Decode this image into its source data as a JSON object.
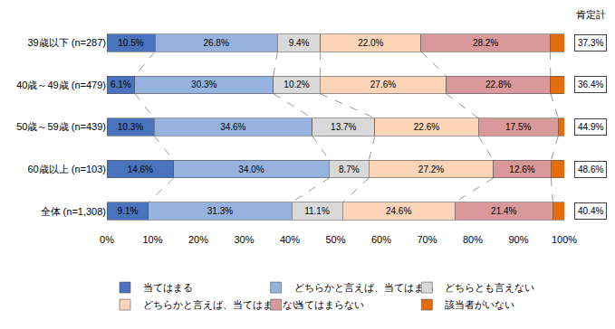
{
  "chart_data": {
    "type": "bar",
    "orientation": "horizontal",
    "stacked": true,
    "grid": false,
    "legend": "bottom",
    "data_labels": true,
    "categories": [
      "39歳以下 (n=287)",
      "40歳～49歳 (n=479)",
      "50歳～59歳 (n=439)",
      "60歳以上 (n=103)",
      "全体 (n=1,308)"
    ],
    "xlim": [
      0,
      100
    ],
    "xticks": [
      {
        "value": 0,
        "label": "0%"
      },
      {
        "value": 10,
        "label": "10%"
      },
      {
        "value": 20,
        "label": "20%"
      },
      {
        "value": 30,
        "label": "30%"
      },
      {
        "value": 40,
        "label": "40%"
      },
      {
        "value": 50,
        "label": "50%"
      },
      {
        "value": 60,
        "label": "60%"
      },
      {
        "value": 70,
        "label": "70%"
      },
      {
        "value": 80,
        "label": "80%"
      },
      {
        "value": 90,
        "label": "90%"
      },
      {
        "value": 100,
        "label": "100%"
      }
    ],
    "series": [
      {
        "name": "当てはまる",
        "color": "#4a73bd",
        "values": [
          10.5,
          6.1,
          10.3,
          14.6,
          9.1
        ],
        "value_labels": [
          "10.5%",
          "6.1%",
          "10.3%",
          "14.6%",
          "9.1%"
        ]
      },
      {
        "name": "どちらかと言えば、当てはまる",
        "color": "#95b3de",
        "values": [
          26.8,
          30.3,
          34.6,
          34.0,
          31.3
        ],
        "value_labels": [
          "26.8%",
          "30.3%",
          "34.6%",
          "34.0%",
          "31.3%"
        ]
      },
      {
        "name": "どちらとも言えない",
        "color": "#d9d9d9",
        "values": [
          9.4,
          10.2,
          13.7,
          8.7,
          11.1
        ],
        "value_labels": [
          "9.4%",
          "10.2%",
          "13.7%",
          "8.7%",
          "11.1%"
        ]
      },
      {
        "name": "どちらかと言えば、当てはまらない",
        "color": "#fcd5b8",
        "values": [
          22.0,
          27.6,
          22.6,
          27.2,
          24.6
        ],
        "value_labels": [
          "22.0%",
          "27.6%",
          "22.6%",
          "27.2%",
          "24.6%"
        ]
      },
      {
        "name": "当てはまらない",
        "color": "#d9999a",
        "values": [
          28.2,
          22.8,
          17.5,
          12.6,
          21.4
        ],
        "value_labels": [
          "28.2%",
          "22.8%",
          "17.5%",
          "12.6%",
          "21.4%"
        ]
      },
      {
        "name": "該当者がいない",
        "color": "#e46c0a",
        "values": [
          3.1,
          3.0,
          1.3,
          2.9,
          2.5
        ],
        "data_labels": false
      }
    ],
    "totals": {
      "title": "肯定計",
      "values": [
        37.3,
        36.4,
        44.9,
        48.6,
        40.4
      ],
      "value_labels": [
        "37.3%",
        "36.4%",
        "44.9%",
        "48.6%",
        "40.4%"
      ]
    }
  }
}
